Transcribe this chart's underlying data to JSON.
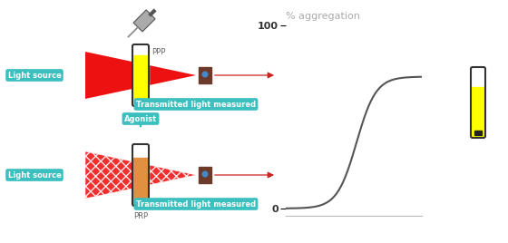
{
  "panel_bg": "#ffffff",
  "light_source_label": "Light source",
  "light_source_color": "#3bbfbf",
  "transmitted_label": "Transmitted light measured",
  "agonist_label": "Agonist",
  "agonist_color": "#3bbfbf",
  "ppp_label": "PPP",
  "prp_label": "PRP",
  "aggregation_title": "% aggregation",
  "agg_title_color": "#aaaaaa",
  "tick_100": "100",
  "tick_0": "0",
  "arrow_color": "#cc2222",
  "tube_border_color": "#333333",
  "detector_color": "#6b3a2a",
  "detector_highlight": "#4488cc",
  "syringe_color": "#888888",
  "ppp_fill": "#ffff00",
  "prp_fill": "#e09040",
  "curve_color": "#555555"
}
